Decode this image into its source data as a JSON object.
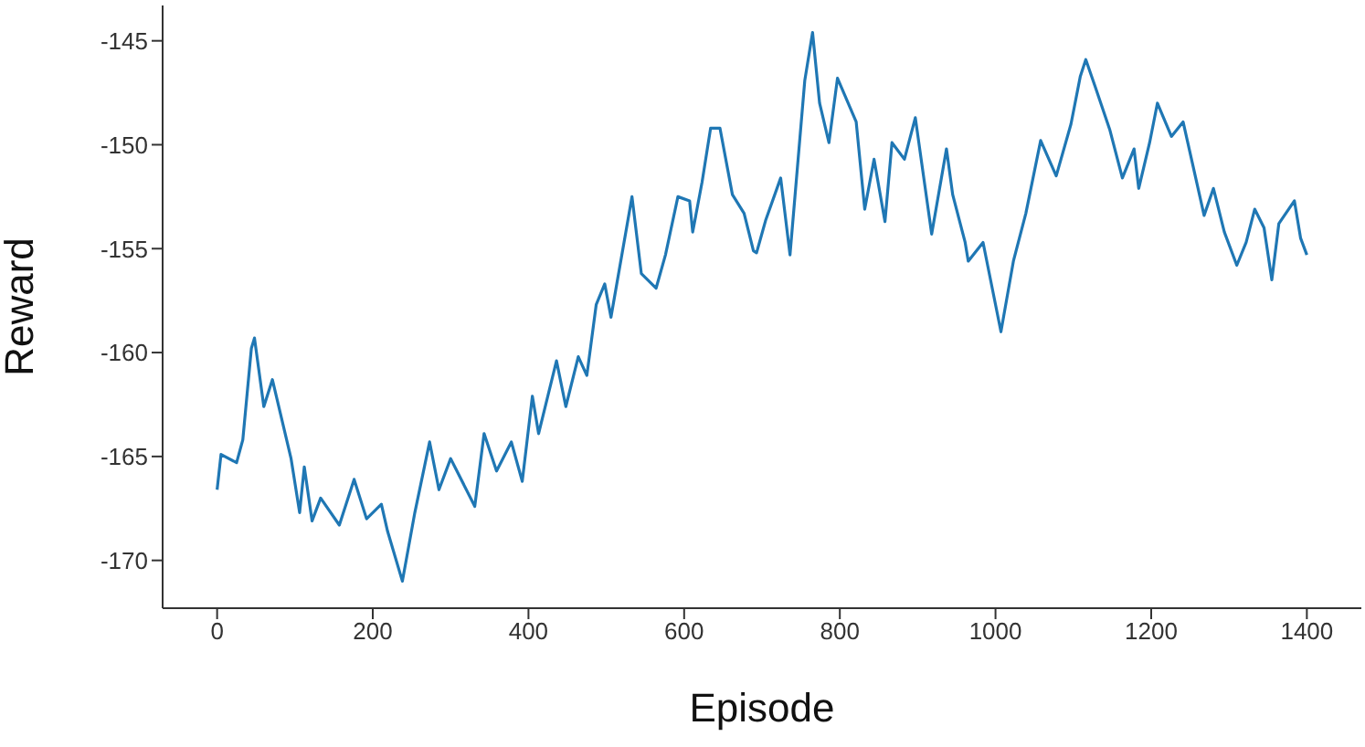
{
  "chart_data": {
    "type": "line",
    "xlabel": "Episode",
    "ylabel": "Reward",
    "xlim": [
      -70,
      1470
    ],
    "ylim": [
      -172.3,
      -143.3
    ],
    "xticks": [
      0,
      200,
      400,
      600,
      800,
      1000,
      1200,
      1400
    ],
    "yticks": [
      -170,
      -165,
      -160,
      -155,
      -150,
      -145
    ],
    "series": [
      {
        "color": "#1f77b4",
        "x": [
          0,
          5,
          25,
          33,
          44,
          48,
          60,
          71,
          95,
          106,
          112,
          122,
          133,
          157,
          176,
          192,
          211,
          219,
          238,
          254,
          273,
          285,
          300,
          331,
          343,
          359,
          378,
          392,
          405,
          413,
          436,
          448,
          464,
          475,
          487,
          498,
          506,
          533,
          545,
          564,
          576,
          592,
          607,
          611,
          623,
          634,
          646,
          662,
          677,
          689,
          693,
          705,
          724,
          736,
          755,
          765,
          774,
          786,
          797,
          821,
          832,
          844,
          858,
          867,
          883,
          897,
          918,
          937,
          945,
          961,
          965,
          984,
          1007,
          1023,
          1039,
          1058,
          1078,
          1097,
          1109,
          1116,
          1128,
          1147,
          1163,
          1178,
          1184,
          1198,
          1208,
          1226,
          1241,
          1253,
          1268,
          1280,
          1294,
          1310,
          1322,
          1333,
          1345,
          1355,
          1364,
          1384,
          1392,
          1400
        ],
        "values": [
          -166.6,
          -164.9,
          -165.3,
          -164.2,
          -159.8,
          -159.3,
          -162.6,
          -161.3,
          -165.1,
          -167.7,
          -165.5,
          -168.1,
          -167.0,
          -168.3,
          -166.1,
          -168.0,
          -167.3,
          -168.6,
          -171.0,
          -167.7,
          -164.3,
          -166.6,
          -165.1,
          -167.4,
          -163.9,
          -165.7,
          -164.3,
          -166.2,
          -162.1,
          -163.9,
          -160.4,
          -162.6,
          -160.2,
          -161.1,
          -157.7,
          -156.7,
          -158.3,
          -152.5,
          -156.2,
          -156.9,
          -155.3,
          -152.5,
          -152.7,
          -154.2,
          -151.8,
          -149.2,
          -149.2,
          -152.4,
          -153.3,
          -155.1,
          -155.2,
          -153.6,
          -151.6,
          -155.3,
          -146.9,
          -144.6,
          -148.0,
          -149.9,
          -146.8,
          -148.9,
          -153.1,
          -150.7,
          -153.7,
          -149.9,
          -150.7,
          -148.7,
          -154.3,
          -150.2,
          -152.4,
          -154.7,
          -155.6,
          -154.7,
          -159.0,
          -155.6,
          -153.3,
          -149.8,
          -151.5,
          -149.0,
          -146.7,
          -145.9,
          -147.2,
          -149.3,
          -151.6,
          -150.2,
          -152.1,
          -149.9,
          -148.0,
          -149.6,
          -148.9,
          -150.9,
          -153.4,
          -152.1,
          -154.2,
          -155.8,
          -154.7,
          -153.1,
          -154.0,
          -156.5,
          -153.8,
          -152.7,
          -154.5,
          -155.3
        ]
      }
    ]
  }
}
